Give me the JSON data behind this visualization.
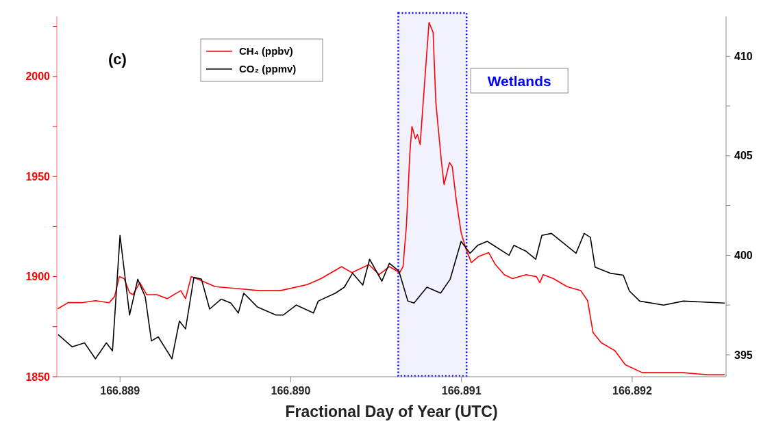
{
  "chart_data": {
    "type": "line",
    "xlabel": "Fractional Day of Year (UTC)",
    "annotations": [
      "(c)"
    ],
    "xlim": [
      166.88863,
      166.89255
    ],
    "xticks": [
      166.889,
      {
        "value": 166.89,
        "label": "166.890"
      },
      166.891,
      166.892
    ],
    "ylim": [
      1850,
      2030
    ],
    "yticks": [
      1850,
      {
        "value": 1875,
        "label": null
      },
      1900,
      {
        "value": 1925,
        "label": null
      },
      1950,
      {
        "value": 1975,
        "label": null
      },
      2000,
      {
        "value": 2025,
        "label": null
      }
    ],
    "y2lim": [
      393.9,
      412
    ],
    "y2ticks": [
      395,
      {
        "value": 397.5,
        "label": null
      },
      400,
      {
        "value": 402.5,
        "label": null
      },
      405,
      {
        "value": 407.5,
        "label": null
      },
      410
    ],
    "bands": [
      {
        "axis": "x",
        "from": 166.89063,
        "to": 166.89103,
        "label": "Wetlands",
        "color": "#0000ff"
      }
    ],
    "legend": "top left",
    "grid": false,
    "line_style": "solid",
    "marker": "none",
    "series": [
      {
        "name": "CH₄ (ppbv)",
        "color": "#ff0000",
        "x": [
          166.888636,
          166.888696,
          166.888776,
          166.888856,
          166.888936,
          166.888968,
          166.888996,
          166.889024,
          166.889056,
          166.889076,
          166.889116,
          166.889156,
          166.889216,
          166.889276,
          166.889356,
          166.889384,
          166.889417,
          166.889477,
          166.889557,
          166.889697,
          166.889817,
          166.889937,
          166.890097,
          166.890177,
          166.890298,
          166.890358,
          166.890458,
          166.890518,
          166.890578,
          166.890638,
          166.890658,
          166.890678,
          166.890698,
          166.89071,
          166.89073,
          166.890742,
          166.890758,
          166.890786,
          166.89081,
          166.890834,
          166.89085,
          166.890882,
          166.890898,
          166.89093,
          166.890946,
          166.89097,
          166.890998,
          166.891026,
          166.891058,
          166.891099,
          166.891159,
          166.891199,
          166.891251,
          166.891299,
          166.891379,
          166.891439,
          166.891459,
          166.891479,
          166.891539,
          166.891619,
          166.891699,
          166.891739,
          166.891771,
          166.891819,
          166.891899,
          166.89196,
          166.89206,
          166.89218,
          166.8923,
          166.89244,
          166.89254
        ],
        "values": [
          1884,
          1887,
          1887,
          1888,
          1887,
          1890,
          1900,
          1899,
          1892,
          1891,
          1897,
          1891,
          1891,
          1889,
          1893,
          1889,
          1900,
          1898,
          1895,
          1894,
          1893,
          1893,
          1896,
          1899,
          1905,
          1902,
          1906,
          1901,
          1905,
          1902,
          1905,
          1926,
          1962,
          1975,
          1969,
          1971,
          1966,
          1999,
          2027,
          2022,
          1987,
          1958,
          1946,
          1957,
          1955,
          1938,
          1922,
          1914,
          1907,
          1910,
          1912,
          1906,
          1901,
          1899,
          1901,
          1900,
          1897,
          1901,
          1899,
          1895,
          1893,
          1888,
          1872,
          1867,
          1863,
          1856,
          1852,
          1852,
          1852,
          1851,
          1851
        ]
      },
      {
        "name": "CO₂ (ppmv)",
        "color": "#000000",
        "axis": "y2",
        "x": [
          166.88864,
          166.88872,
          166.888792,
          166.888856,
          166.88892,
          166.888956,
          166.889,
          166.889056,
          166.889104,
          166.889148,
          166.889184,
          166.889224,
          166.889304,
          166.889348,
          166.889384,
          166.889433,
          166.889477,
          166.889525,
          166.889593,
          166.889649,
          166.889693,
          166.889725,
          166.889805,
          166.889913,
          166.889957,
          166.890033,
          166.890133,
          166.890161,
          166.890262,
          166.890314,
          166.890362,
          166.890422,
          166.890462,
          166.890534,
          166.890578,
          166.890634,
          166.890686,
          166.890722,
          166.890798,
          166.890878,
          166.890934,
          166.890998,
          166.89105,
          166.891095,
          166.891151,
          166.891279,
          166.891307,
          166.891379,
          166.891435,
          166.891471,
          166.891527,
          166.891599,
          166.891671,
          166.891719,
          166.891755,
          166.891783,
          166.891871,
          166.891948,
          166.891984,
          166.892044,
          166.892184,
          166.8923,
          166.89254
        ],
        "values": [
          396.0,
          395.4,
          395.6,
          394.8,
          395.6,
          395.2,
          401.0,
          397.0,
          398.8,
          397.9,
          395.7,
          395.9,
          394.8,
          396.7,
          396.3,
          398.9,
          398.8,
          397.3,
          397.8,
          397.6,
          397.1,
          398.1,
          397.4,
          397.0,
          397.0,
          397.5,
          397.1,
          397.7,
          398.1,
          398.4,
          399.1,
          398.5,
          399.8,
          398.7,
          399.6,
          399.2,
          397.7,
          397.6,
          398.4,
          398.1,
          398.8,
          400.7,
          400.1,
          400.5,
          400.7,
          400.0,
          400.5,
          400.2,
          399.8,
          401.0,
          401.1,
          400.6,
          400.1,
          401.1,
          400.9,
          399.4,
          399.1,
          399.0,
          398.2,
          397.7,
          397.5,
          397.7,
          397.6
        ]
      }
    ]
  }
}
